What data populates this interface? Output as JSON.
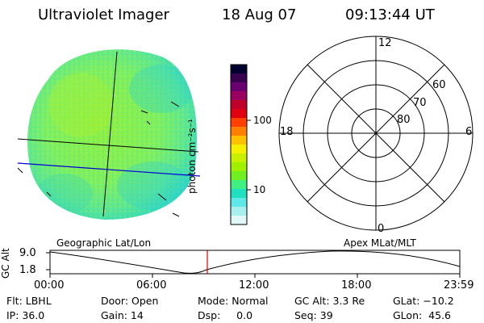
{
  "header": {
    "title": "Ultraviolet Imager",
    "date": "18 Aug 07",
    "time": "09:13:44 UT"
  },
  "colorbar": {
    "unit_label": "photon cm⁻²s⁻¹",
    "ticks": [
      "100",
      "10"
    ],
    "colors": [
      "#000030",
      "#3a0050",
      "#6a0070",
      "#9a0060",
      "#c0002a",
      "#e00010",
      "#ff4000",
      "#ff8000",
      "#ffc000",
      "#f5f000",
      "#c8f000",
      "#a0f000",
      "#70f020",
      "#40f080",
      "#20e0c0",
      "#60e8e8",
      "#a8f0f0",
      "#e0f8f8"
    ]
  },
  "polar_plot": {
    "lat_labels": [
      "60",
      "70",
      "80"
    ],
    "mlt_labels": [
      "12",
      "18",
      "6",
      "0"
    ]
  },
  "map_labels": {
    "left": "Geographic Lat/Lon",
    "right": "Apex MLat/MLT"
  },
  "altitude_plot": {
    "ylabel": "GC Alt",
    "y_ticks": [
      "9.0",
      "1.8"
    ],
    "x_ticks": [
      "00:00",
      "06:00",
      "12:00",
      "18:00",
      "23:59"
    ],
    "marker_time": "09:13",
    "marker_color": "#e00000"
  },
  "info": {
    "flt": "Flt: LBHL",
    "ip": "IP: 36.0",
    "door": "Door: Open",
    "gain": "Gain: 14",
    "mode": "Mode: Normal",
    "dsp": "Dsp:     0.0",
    "gcalt": "GC Alt: 3.3 Re",
    "seq": "Seq: 39",
    "glat": "GLat: −10.2",
    "glon": "GLon:  45.6"
  }
}
